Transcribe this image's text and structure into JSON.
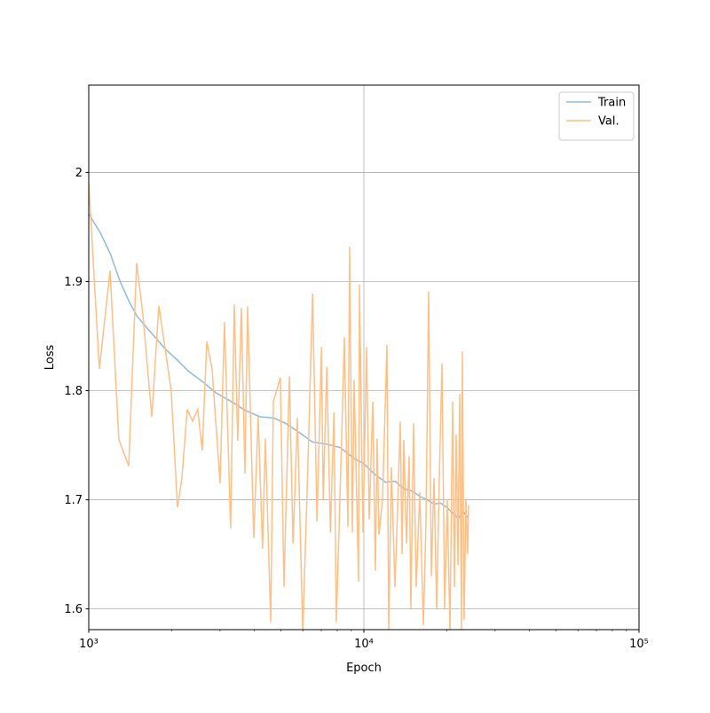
{
  "chart_data": {
    "type": "line",
    "xlabel": "Epoch",
    "ylabel": "Loss",
    "xscale": "log",
    "grid": true,
    "legend": "upper right",
    "xlim": [
      1000,
      100000
    ],
    "ylim": [
      1.581,
      2.08
    ],
    "xticks": [
      {
        "value": 1000,
        "label": "10³"
      },
      {
        "value": 10000,
        "label": "10⁴"
      },
      {
        "value": 100000,
        "label": "10⁵"
      }
    ],
    "xminorticks": [
      2000,
      3000,
      4000,
      5000,
      6000,
      7000,
      8000,
      9000,
      20000,
      30000,
      40000,
      50000,
      60000,
      70000,
      80000,
      90000
    ],
    "yticks": [
      1.6,
      1.7,
      1.8,
      1.9,
      2.0
    ],
    "series": [
      {
        "name": "Train",
        "color": "#8fbbd9",
        "x": [
          1000,
          1100,
          1200,
          1300,
          1400,
          1500,
          1700,
          1900,
          2100,
          2300,
          2600,
          2900,
          3300,
          3700,
          4200,
          4700,
          5200,
          5800,
          6500,
          7300,
          8200,
          9200,
          10000,
          11000,
          12000,
          13000,
          14000,
          15000,
          16000,
          17000,
          18000,
          19000,
          20000,
          21000,
          22000,
          23000,
          24000
        ],
        "values": [
          1.962,
          1.945,
          1.925,
          1.9,
          1.882,
          1.868,
          1.852,
          1.838,
          1.828,
          1.818,
          1.808,
          1.798,
          1.79,
          1.782,
          1.776,
          1.775,
          1.77,
          1.762,
          1.753,
          1.751,
          1.748,
          1.738,
          1.733,
          1.723,
          1.716,
          1.717,
          1.71,
          1.708,
          1.703,
          1.7,
          1.696,
          1.697,
          1.693,
          1.688,
          1.683,
          1.689,
          1.683
        ]
      },
      {
        "name": "Val.",
        "color": "#ffbf86",
        "x": [
          1000,
          1093,
          1195,
          1287,
          1397,
          1493,
          1573,
          1695,
          1798,
          1994,
          2101,
          2181,
          2279,
          2385,
          2490,
          2585,
          2685,
          2807,
          3001,
          3114,
          3279,
          3379,
          3479,
          3586,
          3695,
          3780,
          3978,
          4128,
          4284,
          4384,
          4585,
          4688,
          4972,
          5123,
          5362,
          5527,
          5733,
          5997,
          6273,
          6510,
          6756,
          7011,
          7116,
          7333,
          7556,
          7785,
          7940,
          8247,
          8492,
          8748,
          8873,
          9081,
          9216,
          9564,
          9635,
          9926,
          10225,
          10456,
          10772,
          11014,
          11170,
          11345,
          11688,
          12130,
          12311,
          12589,
          12970,
          13263,
          13562,
          13763,
          13971,
          14283,
          14606,
          14825,
          15152,
          15496,
          15963,
          16447,
          16818,
          17198,
          17586,
          17983,
          18389,
          18804,
          19228,
          19660,
          20102,
          20557,
          21018,
          21330,
          21652,
          21974,
          22300,
          22631,
          22800,
          23142,
          23490,
          23846,
          24020
        ],
        "values": [
          1.99,
          1.82,
          1.91,
          1.755,
          1.731,
          1.917,
          1.87,
          1.776,
          1.878,
          1.8,
          1.693,
          1.72,
          1.783,
          1.772,
          1.783,
          1.745,
          1.845,
          1.82,
          1.715,
          1.863,
          1.674,
          1.879,
          1.754,
          1.876,
          1.724,
          1.877,
          1.665,
          1.776,
          1.655,
          1.756,
          1.588,
          1.79,
          1.812,
          1.62,
          1.813,
          1.66,
          1.775,
          1.578,
          1.74,
          1.889,
          1.68,
          1.84,
          1.7,
          1.822,
          1.67,
          1.78,
          1.588,
          1.73,
          1.849,
          1.675,
          1.932,
          1.67,
          1.81,
          1.625,
          1.897,
          1.67,
          1.84,
          1.682,
          1.79,
          1.635,
          1.756,
          1.668,
          1.7,
          1.842,
          1.58,
          1.73,
          1.62,
          1.692,
          1.772,
          1.65,
          1.755,
          1.66,
          1.74,
          1.6,
          1.77,
          1.62,
          1.707,
          1.585,
          1.68,
          1.891,
          1.63,
          1.72,
          1.6,
          1.72,
          1.825,
          1.6,
          1.7,
          1.58,
          1.79,
          1.62,
          1.76,
          1.64,
          1.797,
          1.58,
          1.836,
          1.59,
          1.7,
          1.65,
          1.695
        ]
      }
    ]
  }
}
